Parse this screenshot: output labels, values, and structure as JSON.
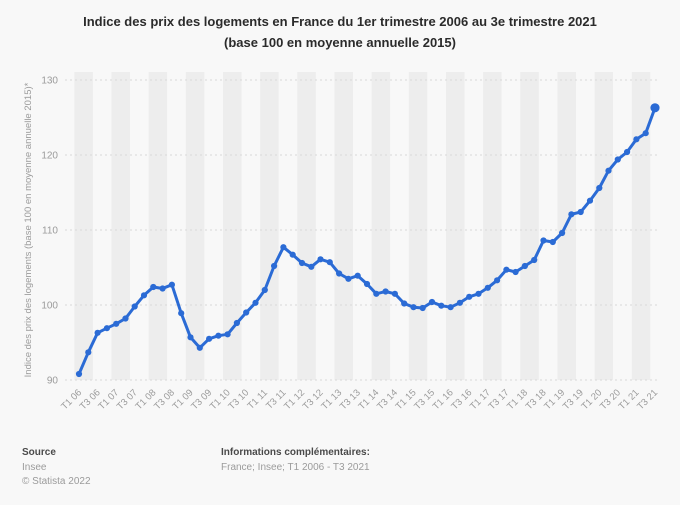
{
  "title": {
    "line1": "Indice des prix des logements en France du 1er trimestre 2006 au 3e trimestre 2021",
    "line2": "(base 100 en moyenne annuelle 2015)"
  },
  "y_axis": {
    "title": "Indice des prix des logements (base 100 en moyenne annuelle 2015)*",
    "ticks": [
      90,
      100,
      110,
      120,
      130
    ],
    "min": 90,
    "max": 130
  },
  "x_axis": {
    "tick_labels": [
      "T1 06",
      "T3 06",
      "T1 07",
      "T3 07",
      "T1 08",
      "T3 08",
      "T1 09",
      "T3 09",
      "T1 10",
      "T3 10",
      "T1 11",
      "T3 11",
      "T1 12",
      "T3 12",
      "T1 13",
      "T3 13",
      "T1 14",
      "T3 14",
      "T1 15",
      "T3 15",
      "T1 16",
      "T3 16",
      "T1 17",
      "T3 17",
      "T1 18",
      "T3 18",
      "T1 19",
      "T3 19",
      "T1 20",
      "T3 20",
      "T1 21",
      "T3 21"
    ]
  },
  "footer": {
    "source_label": "Source",
    "source_value": "Insee",
    "copyright": "© Statista 2022",
    "info_label": "Informations complémentaires:",
    "info_value": "France; Insee; T1 2006 - T3 2021"
  },
  "colors": {
    "line": "#2b6bd5",
    "stripe": "#ededed",
    "plot_background": "#f8f8f8",
    "grid": "#d9d9d9",
    "text_muted": "#9b9b9b",
    "text_dark": "#4a4a4a"
  },
  "chart_data": {
    "type": "line",
    "title": "Indice des prix des logements en France du 1er trimestre 2006 au 3e trimestre 2021 (base 100 en moyenne annuelle 2015)",
    "xlabel": "",
    "ylabel": "Indice des prix des logements (base 100 en moyenne annuelle 2015)*",
    "ylim": [
      90,
      130
    ],
    "grid": "horizontal-dashed",
    "legend": "none",
    "categories": [
      "T1 06",
      "T2 06",
      "T3 06",
      "T4 06",
      "T1 07",
      "T2 07",
      "T3 07",
      "T4 07",
      "T1 08",
      "T2 08",
      "T3 08",
      "T4 08",
      "T1 09",
      "T2 09",
      "T3 09",
      "T4 09",
      "T1 10",
      "T2 10",
      "T3 10",
      "T4 10",
      "T1 11",
      "T2 11",
      "T3 11",
      "T4 11",
      "T1 12",
      "T2 12",
      "T3 12",
      "T4 12",
      "T1 13",
      "T2 13",
      "T3 13",
      "T4 13",
      "T1 14",
      "T2 14",
      "T3 14",
      "T4 14",
      "T1 15",
      "T2 15",
      "T3 15",
      "T4 15",
      "T1 16",
      "T2 16",
      "T3 16",
      "T4 16",
      "T1 17",
      "T2 17",
      "T3 17",
      "T4 17",
      "T1 18",
      "T2 18",
      "T3 18",
      "T4 18",
      "T1 19",
      "T2 19",
      "T3 19",
      "T4 19",
      "T1 20",
      "T2 20",
      "T3 20",
      "T4 20",
      "T1 21",
      "T2 21",
      "T3 21"
    ],
    "values": [
      90.8,
      93.7,
      96.3,
      96.9,
      97.5,
      98.2,
      99.8,
      101.3,
      102.4,
      102.2,
      102.7,
      98.9,
      95.7,
      94.3,
      95.5,
      95.9,
      96.1,
      97.6,
      99.0,
      100.3,
      102.0,
      105.2,
      107.7,
      106.7,
      105.6,
      105.1,
      106.1,
      105.7,
      104.2,
      103.5,
      103.9,
      102.8,
      101.5,
      101.8,
      101.5,
      100.2,
      99.7,
      99.6,
      100.4,
      99.9,
      99.7,
      100.3,
      101.1,
      101.5,
      102.3,
      103.3,
      104.7,
      104.4,
      105.2,
      106.0,
      108.6,
      108.4,
      109.6,
      112.1,
      112.4,
      113.9,
      115.6,
      117.9,
      119.4,
      120.4,
      122.1,
      122.9,
      126.3
    ]
  }
}
